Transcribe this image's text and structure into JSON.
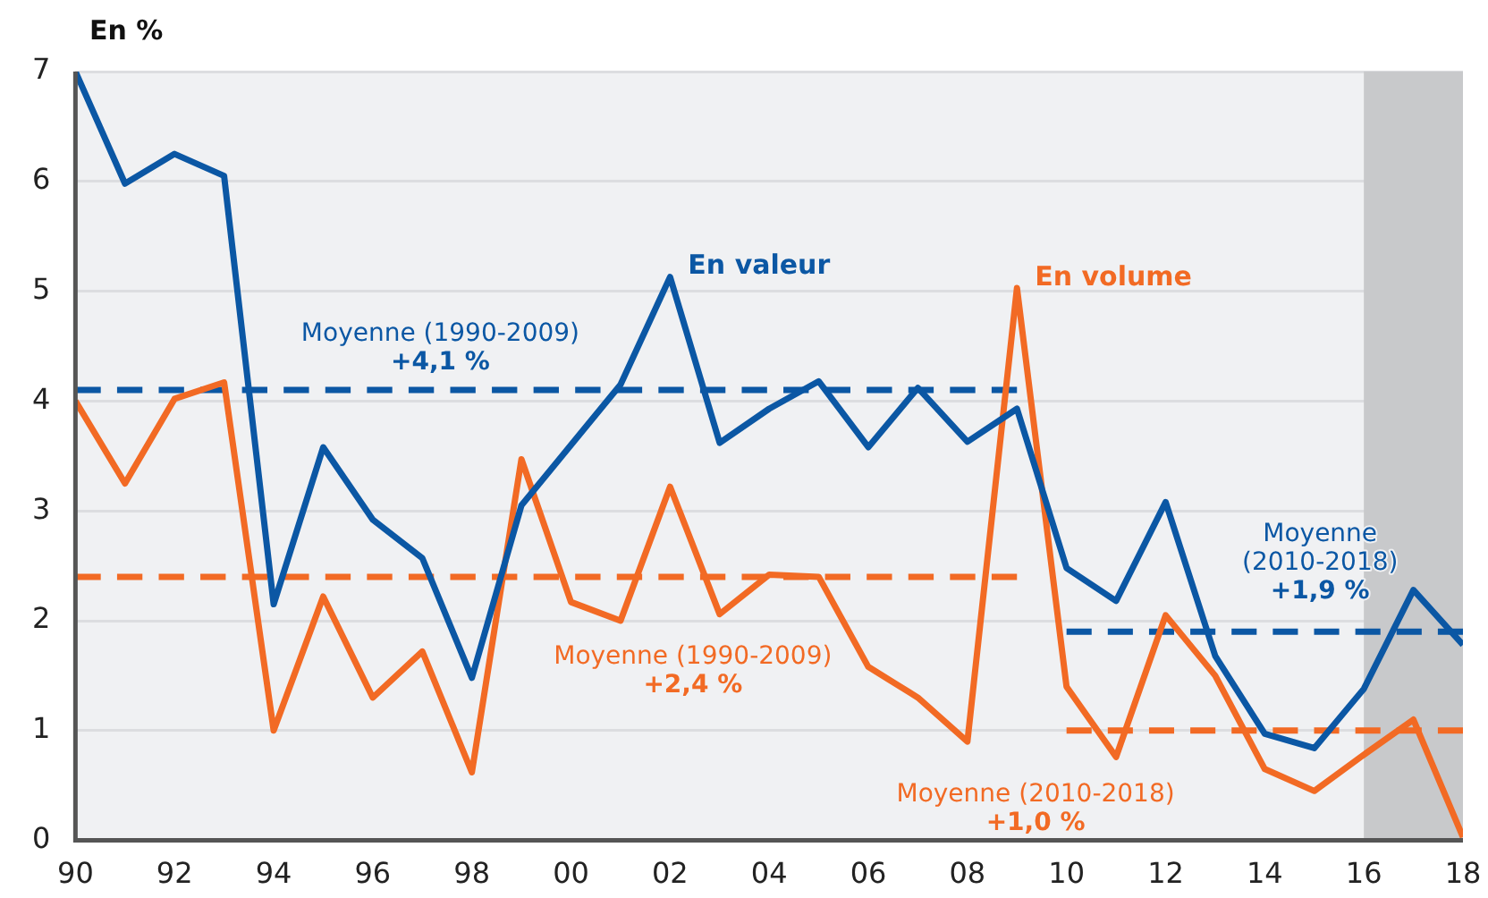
{
  "chart_data": {
    "type": "line",
    "ylabel": "En %",
    "x": [
      1990,
      1991,
      1992,
      1993,
      1994,
      1995,
      1996,
      1997,
      1998,
      1999,
      2000,
      2001,
      2002,
      2003,
      2004,
      2005,
      2006,
      2007,
      2008,
      2009,
      2010,
      2011,
      2012,
      2013,
      2014,
      2015,
      2016,
      2017,
      2018
    ],
    "series": [
      {
        "name": "En valeur",
        "color": "#0b57a4",
        "values": [
          7.0,
          5.98,
          6.25,
          6.05,
          2.15,
          3.58,
          2.92,
          2.57,
          1.48,
          3.05,
          3.6,
          4.15,
          5.13,
          3.62,
          3.93,
          4.18,
          3.58,
          4.12,
          3.63,
          3.93,
          2.48,
          2.18,
          3.08,
          1.68,
          0.97,
          0.84,
          1.38,
          2.28,
          1.78
        ]
      },
      {
        "name": "En volume",
        "color": "#f26a24",
        "values": [
          4.0,
          3.25,
          4.02,
          4.17,
          1.0,
          2.22,
          1.3,
          1.72,
          0.62,
          3.47,
          2.17,
          2.0,
          3.22,
          2.06,
          2.42,
          2.4,
          1.58,
          1.3,
          0.9,
          5.03,
          1.4,
          0.76,
          2.05,
          1.5,
          0.65,
          0.45,
          0.78,
          1.1,
          0.03
        ]
      },
      {
        "color": "#0b57a4",
        "x": [
          1990,
          2009
        ],
        "values": [
          4.1,
          4.1
        ],
        "line_style": "dashed"
      },
      {
        "color": "#f26a24",
        "x": [
          1990,
          2009
        ],
        "values": [
          2.4,
          2.4
        ],
        "line_style": "dashed"
      },
      {
        "color": "#0b57a4",
        "x": [
          2010,
          2018
        ],
        "values": [
          1.9,
          1.9
        ],
        "line_style": "dashed"
      },
      {
        "color": "#f26a24",
        "x": [
          2010,
          2018
        ],
        "values": [
          1.0,
          1.0
        ],
        "line_style": "dashed"
      }
    ],
    "annotations": [
      "Moyenne (1990-2009)\n+4,1 %",
      "Moyenne (1990-2009)\n+2,4 %",
      "Moyenne\n(2010-2018)\n+1,9 %",
      "Moyenne (2010-2018)\n+1,0 %"
    ],
    "bands": [
      {
        "axis": "x",
        "from": 2016,
        "to": 2018,
        "color": "#c8c9cb"
      }
    ],
    "xlim": [
      1990,
      2018
    ],
    "xticks": [
      {
        "value": 1990,
        "label": "90"
      },
      {
        "value": 1992,
        "label": "92"
      },
      {
        "value": 1994,
        "label": "94"
      },
      {
        "value": 1996,
        "label": "96"
      },
      {
        "value": 1998,
        "label": "98"
      },
      {
        "value": 2000,
        "label": "00"
      },
      {
        "value": 2002,
        "label": "02"
      },
      {
        "value": 2004,
        "label": "04"
      },
      {
        "value": 2006,
        "label": "06"
      },
      {
        "value": 2008,
        "label": "08"
      },
      {
        "value": 2010,
        "label": "10"
      },
      {
        "value": 2012,
        "label": "12"
      },
      {
        "value": 2014,
        "label": "14"
      },
      {
        "value": 2016,
        "label": "16"
      },
      {
        "value": 2018,
        "label": "18"
      }
    ],
    "ylim": [
      0,
      7
    ],
    "yticks": [
      0,
      1,
      2,
      3,
      4,
      5,
      6,
      7
    ],
    "grid": "y",
    "legend": false,
    "marker": "none",
    "line_style": "solid"
  }
}
